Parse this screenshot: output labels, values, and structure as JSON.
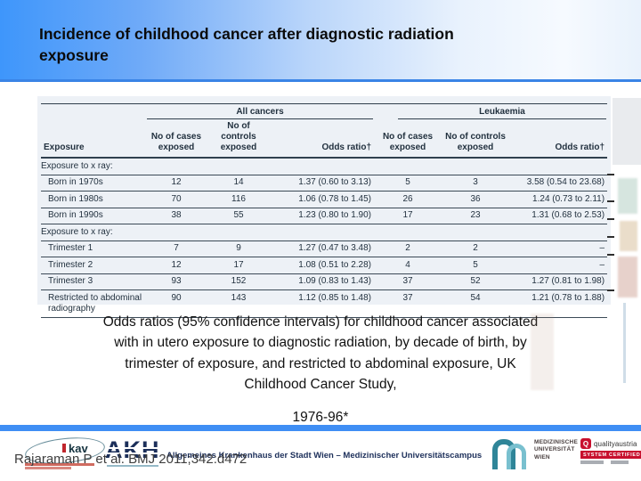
{
  "slide": {
    "title": "Incidence of childhood cancer after diagnostic radiation exposure",
    "caption_lines": [
      "Odds ratios (95% confidence intervals) for childhood cancer associated",
      "with in utero exposure to diagnostic radiation, by decade of birth, by",
      "trimester of exposure, and restricted to abdominal exposure, UK",
      "Childhood Cancer Study,"
    ],
    "caption_year": "1976-96*"
  },
  "table": {
    "first_column_header": "Exposure",
    "groups": [
      {
        "label": "All cancers",
        "columns": [
          "No of cases exposed",
          "No of controls exposed",
          "Odds ratio†"
        ]
      },
      {
        "label": "Leukaemia",
        "columns": [
          "No of cases exposed",
          "No of controls exposed",
          "Odds ratio†"
        ]
      }
    ],
    "rows": [
      {
        "type": "section",
        "label": "Exposure to x ray:"
      },
      {
        "type": "data",
        "label": "Born in 1970s",
        "cells": [
          "12",
          "14",
          "1.37 (0.60 to 3.13)",
          "5",
          "3",
          "3.58 (0.54 to 23.68)"
        ]
      },
      {
        "type": "data",
        "label": "Born in 1980s",
        "cells": [
          "70",
          "116",
          "1.06 (0.78 to 1.45)",
          "26",
          "36",
          "1.24 (0.73 to 2.11)"
        ]
      },
      {
        "type": "data",
        "label": "Born in 1990s",
        "cells": [
          "38",
          "55",
          "1.23 (0.80 to 1.90)",
          "17",
          "23",
          "1.31 (0.68 to 2.53)"
        ]
      },
      {
        "type": "section",
        "label": "Exposure to x ray:"
      },
      {
        "type": "data",
        "label": "Trimester 1",
        "cells": [
          "7",
          "9",
          "1.27 (0.47 to 3.48)",
          "2",
          "2",
          "–"
        ]
      },
      {
        "type": "data",
        "label": "Trimester 2",
        "cells": [
          "12",
          "17",
          "1.08 (0.51 to 2.28)",
          "4",
          "5",
          "–"
        ]
      },
      {
        "type": "data",
        "label": "Trimester 3",
        "cells": [
          "93",
          "152",
          "1.09 (0.83 to 1.43)",
          "37",
          "52",
          "1.27 (0.81 to 1.98)"
        ]
      },
      {
        "type": "data",
        "label": "Restricted to abdominal radiography",
        "cells": [
          "90",
          "143",
          "1.12 (0.85 to 1.48)",
          "37",
          "54",
          "1.21 (0.78 to 1.88)"
        ]
      }
    ]
  },
  "footer": {
    "citation": "Rajaraman P et al. BMJ 2011;342:d472",
    "institution": "Allgemeines Krankenhaus der Stadt Wien – Medizinischer Universitätscampus",
    "kav_logo_text": "kav",
    "akh_logo_text": "AKH",
    "muw_logo_lines": [
      "MEDIZINISCHE",
      "UNIVERSITÄT",
      "WIEN"
    ],
    "qa_logo_name": "qualityaustria",
    "qa_logo_cert": "SYSTEM CERTIFIED"
  },
  "colors": {
    "header_gradient_start": "#3e96fb",
    "header_gradient_end": "#e9f2fc",
    "divider_blue": "#3f8ef4",
    "table_background": "#edf1f6",
    "table_text": "#22313f",
    "akh_navy": "#1c2f5a",
    "muw_teal": "#2f8598",
    "qa_red": "#c8102e"
  }
}
